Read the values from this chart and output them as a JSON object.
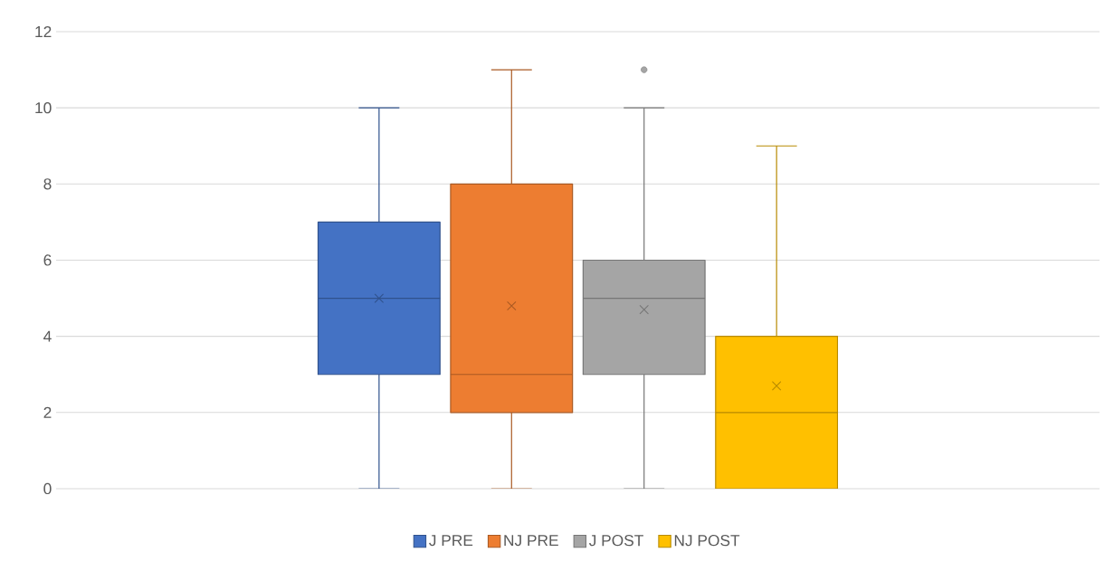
{
  "chart_data": {
    "type": "box",
    "categories": [
      null
    ],
    "ylim": [
      0,
      12
    ],
    "yticks": [
      0,
      2,
      4,
      6,
      8,
      10,
      12
    ],
    "grid": "y",
    "legend": "bottom",
    "marker": "cross",
    "series": [
      {
        "name": "J PRE",
        "color": "#4472c4",
        "boxes": [
          {
            "low": 0,
            "q1": 3,
            "median": 5,
            "q3": 7,
            "high": 10,
            "mean": 5.0
          }
        ]
      },
      {
        "name": "NJ PRE",
        "color": "#ed7d31",
        "boxes": [
          {
            "low": 0,
            "q1": 2,
            "median": 3,
            "q3": 8,
            "high": 11,
            "mean": 4.8
          }
        ]
      },
      {
        "name": "J POST",
        "color": "#a5a5a5",
        "boxes": [
          {
            "low": 0,
            "q1": 3,
            "median": 5,
            "q3": 6,
            "high": 10,
            "mean": 4.7,
            "outliers": [
              11
            ]
          }
        ]
      },
      {
        "name": "NJ POST",
        "color": "#ffc000",
        "boxes": [
          {
            "low": 0,
            "q1": 0,
            "median": 2,
            "q3": 4,
            "high": 9,
            "mean": 2.7
          }
        ]
      }
    ]
  }
}
